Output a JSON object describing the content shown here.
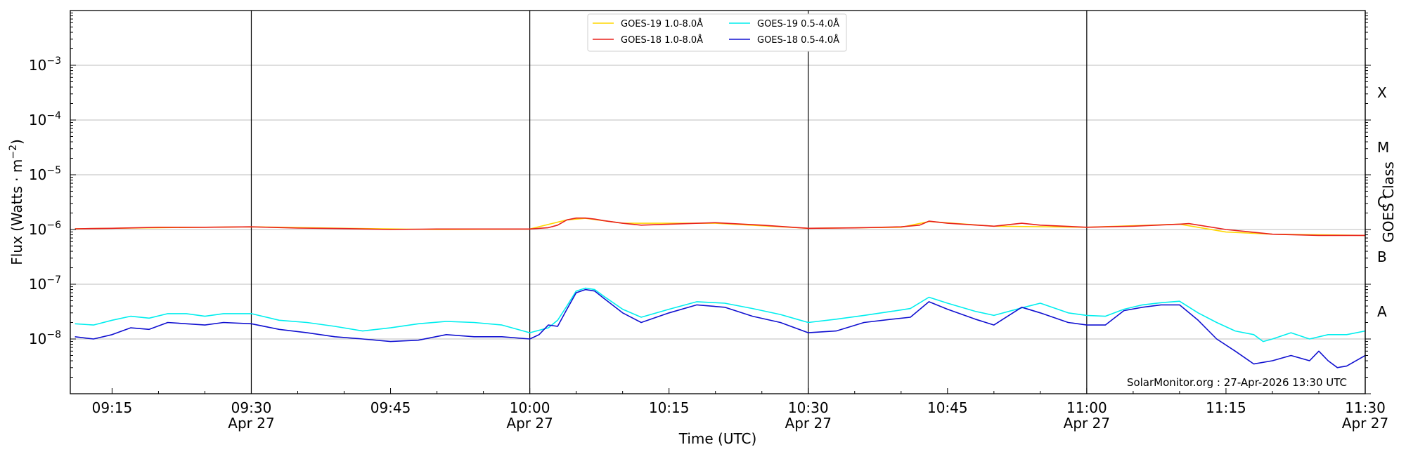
{
  "chart_data": {
    "type": "line",
    "title": "",
    "xlabel": "Time (UTC)",
    "ylabel": "Flux (Watts · m",
    "ylabel_superscript": "−2",
    "ylabel_close": ")",
    "y2label": "GOES Class",
    "yscale": "log",
    "ylim": [
      1e-09,
      0.01
    ],
    "xlim_minutes_from_0915": [
      -4.5,
      135
    ],
    "grid": "horizontal",
    "legend_position": "top-center",
    "credit": "SolarMonitor.org : 27-Apr-2026 13:30 UTC",
    "y_ticks": [
      {
        "value": 1e-08,
        "base": "10",
        "exp": "−8"
      },
      {
        "value": 1e-07,
        "base": "10",
        "exp": "−7"
      },
      {
        "value": 1e-06,
        "base": "10",
        "exp": "−6"
      },
      {
        "value": 1e-05,
        "base": "10",
        "exp": "−5"
      },
      {
        "value": 0.0001,
        "base": "10",
        "exp": "−4"
      },
      {
        "value": 0.001,
        "base": "10",
        "exp": "−3"
      }
    ],
    "goes_classes": [
      {
        "label": "A",
        "value": 3.16e-08
      },
      {
        "label": "B",
        "value": 3.16e-07
      },
      {
        "label": "C",
        "value": 3.16e-06
      },
      {
        "label": "M",
        "value": 3.16e-05
      },
      {
        "label": "X",
        "value": 0.000316
      }
    ],
    "x_ticks": [
      {
        "label": "09:15",
        "date": ""
      },
      {
        "label": "09:30",
        "date": "Apr 27"
      },
      {
        "label": "09:45",
        "date": ""
      },
      {
        "label": "10:00",
        "date": "Apr 27"
      },
      {
        "label": "10:15",
        "date": ""
      },
      {
        "label": "10:30",
        "date": "Apr 27"
      },
      {
        "label": "10:45",
        "date": ""
      },
      {
        "label": "11:00",
        "date": "Apr 27"
      },
      {
        "label": "11:15",
        "date": ""
      },
      {
        "label": "11:30",
        "date": "Apr 27"
      }
    ],
    "vertical_lines": [
      "09:30",
      "10:00",
      "10:30",
      "11:00",
      "11:30"
    ],
    "series": [
      {
        "name": "GOES-19 1.0-8.0Å",
        "color": "#ffd700",
        "x": [
          "09:11",
          "09:20",
          "09:30",
          "09:40",
          "09:50",
          "10:00",
          "10:04",
          "10:06",
          "10:10",
          "10:20",
          "10:30",
          "10:40",
          "10:43",
          "10:50",
          "11:00",
          "11:10",
          "11:15",
          "11:20",
          "11:30"
        ],
        "y": [
          1.03e-06,
          1.08e-06,
          1.12e-06,
          1.05e-06,
          1e-06,
          1.02e-06,
          1.5e-06,
          1.6e-06,
          1.3e-06,
          1.3e-06,
          1.05e-06,
          1.1e-06,
          1.4e-06,
          1.15e-06,
          1.1e-06,
          1.25e-06,
          9e-07,
          8.2e-07,
          7.8e-07
        ]
      },
      {
        "name": "GOES-18 1.0-8.0Å",
        "color": "#e8201c",
        "x": [
          "09:11",
          "09:15",
          "09:20",
          "09:25",
          "09:30",
          "09:35",
          "09:40",
          "09:45",
          "09:50",
          "09:55",
          "10:00",
          "10:02",
          "10:03",
          "10:04",
          "10:05",
          "10:06",
          "10:07",
          "10:08",
          "10:10",
          "10:12",
          "10:15",
          "10:20",
          "10:25",
          "10:30",
          "10:35",
          "10:40",
          "10:42",
          "10:43",
          "10:45",
          "10:50",
          "10:53",
          "10:55",
          "11:00",
          "11:05",
          "11:10",
          "11:11",
          "11:15",
          "11:20",
          "11:25",
          "11:30"
        ],
        "y": [
          1.03e-06,
          1.05e-06,
          1.1e-06,
          1.1e-06,
          1.12e-06,
          1.06e-06,
          1.04e-06,
          1e-06,
          1.02e-06,
          1.02e-06,
          1.02e-06,
          1.08e-06,
          1.2e-06,
          1.5e-06,
          1.62e-06,
          1.62e-06,
          1.55e-06,
          1.45e-06,
          1.3e-06,
          1.2e-06,
          1.25e-06,
          1.33e-06,
          1.2e-06,
          1.05e-06,
          1.07e-06,
          1.12e-06,
          1.2e-06,
          1.42e-06,
          1.3e-06,
          1.15e-06,
          1.3e-06,
          1.2e-06,
          1.1e-06,
          1.15e-06,
          1.25e-06,
          1.28e-06,
          1e-06,
          8.2e-07,
          7.8e-07,
          7.8e-07
        ]
      },
      {
        "name": "GOES-19 0.5-4.0Å",
        "color": "#00eeee",
        "x": [
          "09:11",
          "09:13",
          "09:15",
          "09:17",
          "09:19",
          "09:21",
          "09:23",
          "09:25",
          "09:27",
          "09:30",
          "09:33",
          "09:36",
          "09:39",
          "09:42",
          "09:45",
          "09:48",
          "09:51",
          "09:54",
          "09:57",
          "10:00",
          "10:02",
          "10:03",
          "10:04",
          "10:05",
          "10:06",
          "10:07",
          "10:08",
          "10:10",
          "10:12",
          "10:15",
          "10:18",
          "10:21",
          "10:24",
          "10:27",
          "10:30",
          "10:33",
          "10:36",
          "10:39",
          "10:41",
          "10:43",
          "10:45",
          "10:48",
          "10:50",
          "10:53",
          "10:55",
          "10:58",
          "11:00",
          "11:02",
          "11:04",
          "11:06",
          "11:08",
          "11:10",
          "11:12",
          "11:14",
          "11:16",
          "11:18",
          "11:19",
          "11:20",
          "11:22",
          "11:24",
          "11:26",
          "11:28",
          "11:30"
        ],
        "y": [
          1.9e-08,
          1.8e-08,
          2.2e-08,
          2.6e-08,
          2.4e-08,
          2.9e-08,
          2.9e-08,
          2.6e-08,
          2.9e-08,
          2.9e-08,
          2.2e-08,
          2e-08,
          1.7e-08,
          1.4e-08,
          1.6e-08,
          1.9e-08,
          2.1e-08,
          2e-08,
          1.8e-08,
          1.3e-08,
          1.6e-08,
          2.2e-08,
          4e-08,
          7.5e-08,
          8.5e-08,
          8e-08,
          6e-08,
          3.5e-08,
          2.5e-08,
          3.5e-08,
          4.8e-08,
          4.5e-08,
          3.6e-08,
          2.8e-08,
          2e-08,
          2.3e-08,
          2.7e-08,
          3.2e-08,
          3.6e-08,
          5.8e-08,
          4.5e-08,
          3.2e-08,
          2.7e-08,
          3.7e-08,
          4.5e-08,
          3e-08,
          2.7e-08,
          2.6e-08,
          3.5e-08,
          4.2e-08,
          4.6e-08,
          4.9e-08,
          3e-08,
          2e-08,
          1.4e-08,
          1.2e-08,
          9e-09,
          1e-08,
          1.3e-08,
          1e-08,
          1.2e-08,
          1.2e-08,
          1.4e-08
        ]
      },
      {
        "name": "GOES-18 0.5-4.0Å",
        "color": "#1010d0",
        "x": [
          "09:11",
          "09:13",
          "09:15",
          "09:17",
          "09:19",
          "09:21",
          "09:23",
          "09:25",
          "09:27",
          "09:30",
          "09:33",
          "09:36",
          "09:39",
          "09:42",
          "09:45",
          "09:48",
          "09:51",
          "09:54",
          "09:57",
          "10:00",
          "10:01",
          "10:02",
          "10:03",
          "10:04",
          "10:05",
          "10:06",
          "10:07",
          "10:08",
          "10:10",
          "10:12",
          "10:15",
          "10:18",
          "10:21",
          "10:24",
          "10:27",
          "10:30",
          "10:33",
          "10:36",
          "10:39",
          "10:41",
          "10:43",
          "10:45",
          "10:48",
          "10:50",
          "10:53",
          "10:55",
          "10:58",
          "11:00",
          "11:02",
          "11:04",
          "11:06",
          "11:08",
          "11:10",
          "11:12",
          "11:14",
          "11:16",
          "11:18",
          "11:20",
          "11:22",
          "11:24",
          "11:25",
          "11:26",
          "11:27",
          "11:28",
          "11:30"
        ],
        "y": [
          1.1e-08,
          1e-08,
          1.2e-08,
          1.6e-08,
          1.5e-08,
          2e-08,
          1.9e-08,
          1.8e-08,
          2e-08,
          1.9e-08,
          1.5e-08,
          1.3e-08,
          1.1e-08,
          1e-08,
          9e-09,
          9.5e-09,
          1.2e-08,
          1.1e-08,
          1.1e-08,
          1e-08,
          1.2e-08,
          1.8e-08,
          1.7e-08,
          3.5e-08,
          7e-08,
          8e-08,
          7.5e-08,
          5.5e-08,
          3e-08,
          2e-08,
          3e-08,
          4.2e-08,
          3.8e-08,
          2.6e-08,
          2e-08,
          1.3e-08,
          1.4e-08,
          2e-08,
          2.3e-08,
          2.5e-08,
          4.8e-08,
          3.5e-08,
          2.3e-08,
          1.8e-08,
          3.8e-08,
          3e-08,
          2e-08,
          1.8e-08,
          1.8e-08,
          3.3e-08,
          3.8e-08,
          4.2e-08,
          4.2e-08,
          2.2e-08,
          1e-08,
          6e-09,
          3.5e-09,
          4e-09,
          5e-09,
          4e-09,
          6e-09,
          4e-09,
          3e-09,
          3.2e-09,
          5e-09
        ]
      }
    ]
  }
}
